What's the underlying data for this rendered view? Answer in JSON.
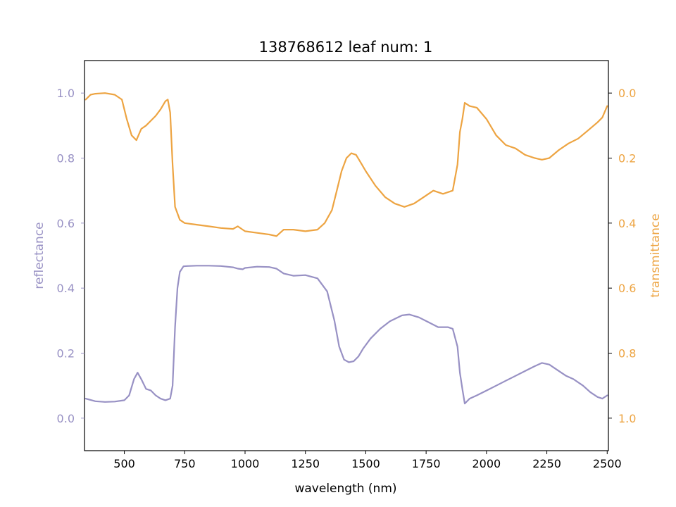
{
  "chart_data": {
    "type": "line",
    "title": "138768612 leaf num: 1",
    "xlabel": "wavelength (nm)",
    "xlim": [
      335,
      2505
    ],
    "xticks": [
      500,
      750,
      1000,
      1250,
      1500,
      1750,
      2000,
      2250,
      2500
    ],
    "grid": false,
    "legend": "none",
    "left_axis": {
      "label": "reflectance",
      "color": "#9891c4",
      "ylim": [
        -0.1,
        1.1
      ],
      "ticks": [
        "0.0",
        "0.2",
        "0.4",
        "0.6",
        "0.8",
        "1.0"
      ],
      "tick_values": [
        0.0,
        0.2,
        0.4,
        0.6,
        0.8,
        1.0
      ]
    },
    "right_axis": {
      "label": "transmittance",
      "color": "#eda442",
      "inverted": true,
      "ylim": [
        1.1,
        -0.1
      ],
      "ticks": [
        "0.0",
        "0.2",
        "0.4",
        "0.6",
        "0.8",
        "1.0"
      ],
      "tick_values": [
        0.0,
        0.2,
        0.4,
        0.6,
        0.8,
        1.0
      ]
    },
    "series": [
      {
        "axis": "left",
        "color": "#9891c4",
        "x": [
          340,
          380,
          420,
          460,
          500,
          520,
          540,
          555,
          570,
          590,
          610,
          630,
          650,
          670,
          690,
          700,
          710,
          720,
          730,
          745,
          760,
          800,
          850,
          900,
          950,
          970,
          990,
          1000,
          1050,
          1100,
          1130,
          1160,
          1200,
          1250,
          1300,
          1340,
          1370,
          1390,
          1410,
          1430,
          1450,
          1470,
          1490,
          1520,
          1560,
          1600,
          1650,
          1680,
          1720,
          1760,
          1800,
          1840,
          1860,
          1880,
          1890,
          1900,
          1910,
          1930,
          1960,
          2000,
          2040,
          2080,
          2120,
          2160,
          2200,
          2230,
          2260,
          2300,
          2330,
          2360,
          2400,
          2430,
          2460,
          2480,
          2500
        ],
        "y": [
          0.06,
          0.052,
          0.05,
          0.051,
          0.055,
          0.07,
          0.12,
          0.14,
          0.12,
          0.09,
          0.085,
          0.07,
          0.06,
          0.055,
          0.06,
          0.1,
          0.28,
          0.4,
          0.45,
          0.467,
          0.468,
          0.469,
          0.469,
          0.468,
          0.464,
          0.46,
          0.458,
          0.462,
          0.466,
          0.465,
          0.46,
          0.445,
          0.438,
          0.44,
          0.43,
          0.39,
          0.3,
          0.22,
          0.18,
          0.172,
          0.175,
          0.19,
          0.215,
          0.245,
          0.275,
          0.298,
          0.316,
          0.319,
          0.31,
          0.295,
          0.28,
          0.28,
          0.275,
          0.22,
          0.14,
          0.09,
          0.045,
          0.06,
          0.07,
          0.085,
          0.1,
          0.115,
          0.13,
          0.145,
          0.16,
          0.17,
          0.165,
          0.145,
          0.13,
          0.12,
          0.1,
          0.08,
          0.065,
          0.06,
          0.07
        ]
      },
      {
        "axis": "right",
        "color": "#eda442",
        "x": [
          340,
          360,
          380,
          420,
          460,
          490,
          510,
          530,
          550,
          570,
          590,
          610,
          630,
          650,
          670,
          680,
          690,
          700,
          710,
          730,
          750,
          800,
          850,
          900,
          950,
          970,
          990,
          1000,
          1050,
          1100,
          1130,
          1160,
          1200,
          1250,
          1300,
          1330,
          1360,
          1380,
          1400,
          1420,
          1440,
          1460,
          1480,
          1500,
          1540,
          1580,
          1620,
          1660,
          1700,
          1740,
          1780,
          1820,
          1860,
          1880,
          1890,
          1900,
          1910,
          1930,
          1960,
          2000,
          2040,
          2080,
          2120,
          2160,
          2200,
          2230,
          2260,
          2300,
          2340,
          2380,
          2420,
          2460,
          2480,
          2500
        ],
        "y": [
          0.02,
          0.005,
          0.002,
          0.0,
          0.005,
          0.02,
          0.08,
          0.13,
          0.145,
          0.11,
          0.1,
          0.085,
          0.07,
          0.05,
          0.025,
          0.02,
          0.06,
          0.22,
          0.35,
          0.39,
          0.4,
          0.405,
          0.41,
          0.415,
          0.418,
          0.41,
          0.42,
          0.425,
          0.43,
          0.435,
          0.44,
          0.42,
          0.42,
          0.425,
          0.42,
          0.4,
          0.36,
          0.3,
          0.24,
          0.2,
          0.185,
          0.19,
          0.215,
          0.24,
          0.285,
          0.32,
          0.34,
          0.35,
          0.34,
          0.32,
          0.3,
          0.31,
          0.3,
          0.22,
          0.12,
          0.08,
          0.03,
          0.04,
          0.045,
          0.08,
          0.13,
          0.16,
          0.17,
          0.19,
          0.2,
          0.205,
          0.2,
          0.175,
          0.155,
          0.14,
          0.115,
          0.09,
          0.075,
          0.04
        ]
      }
    ]
  }
}
